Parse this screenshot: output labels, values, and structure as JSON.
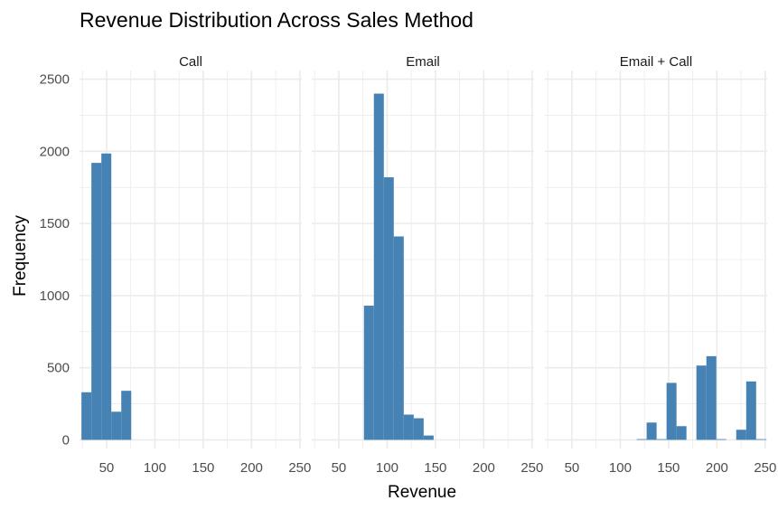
{
  "chart_data": {
    "type": "bar",
    "title": "Revenue Distribution Across Sales Method",
    "xlabel": "Revenue",
    "ylabel": "Frequency",
    "xlim": [
      22,
      252
    ],
    "ylim": [
      -60,
      2560
    ],
    "xticks": [
      50,
      100,
      150,
      200,
      250
    ],
    "yticks": [
      0,
      500,
      1000,
      1500,
      2000,
      2500
    ],
    "grid": true,
    "bin_width": 10.3,
    "bar_color": "#4682B4",
    "grid_color": "#EBEBEB",
    "panels": [
      {
        "name": "Call",
        "bins": [
          {
            "x0": 24,
            "x1": 34.3,
            "count": 330
          },
          {
            "x0": 34.3,
            "x1": 44.6,
            "count": 1920
          },
          {
            "x0": 44.6,
            "x1": 54.9,
            "count": 1985
          },
          {
            "x0": 54.9,
            "x1": 65.2,
            "count": 195
          },
          {
            "x0": 65.2,
            "x1": 75.5,
            "count": 340
          }
        ]
      },
      {
        "name": "Email",
        "bins": [
          {
            "x0": 76,
            "x1": 86.3,
            "count": 930
          },
          {
            "x0": 86.3,
            "x1": 96.6,
            "count": 2400
          },
          {
            "x0": 96.6,
            "x1": 106.9,
            "count": 1820
          },
          {
            "x0": 106.9,
            "x1": 117.2,
            "count": 1410
          },
          {
            "x0": 117.2,
            "x1": 127.5,
            "count": 175
          },
          {
            "x0": 127.5,
            "x1": 137.8,
            "count": 150
          },
          {
            "x0": 137.8,
            "x1": 148.1,
            "count": 30
          }
        ]
      },
      {
        "name": "Email + Call",
        "bins": [
          {
            "x0": 117,
            "x1": 127.3,
            "count": 5
          },
          {
            "x0": 127.3,
            "x1": 137.6,
            "count": 120
          },
          {
            "x0": 137.6,
            "x1": 147.9,
            "count": 5
          },
          {
            "x0": 147.9,
            "x1": 158.2,
            "count": 395
          },
          {
            "x0": 158.2,
            "x1": 168.5,
            "count": 95
          },
          {
            "x0": 178.8,
            "x1": 189.1,
            "count": 515
          },
          {
            "x0": 189.1,
            "x1": 199.4,
            "count": 580
          },
          {
            "x0": 199.4,
            "x1": 209.7,
            "count": 5
          },
          {
            "x0": 220,
            "x1": 230.3,
            "count": 70
          },
          {
            "x0": 230.3,
            "x1": 240.6,
            "count": 405
          },
          {
            "x0": 240.6,
            "x1": 250.9,
            "count": 5
          }
        ]
      }
    ]
  }
}
